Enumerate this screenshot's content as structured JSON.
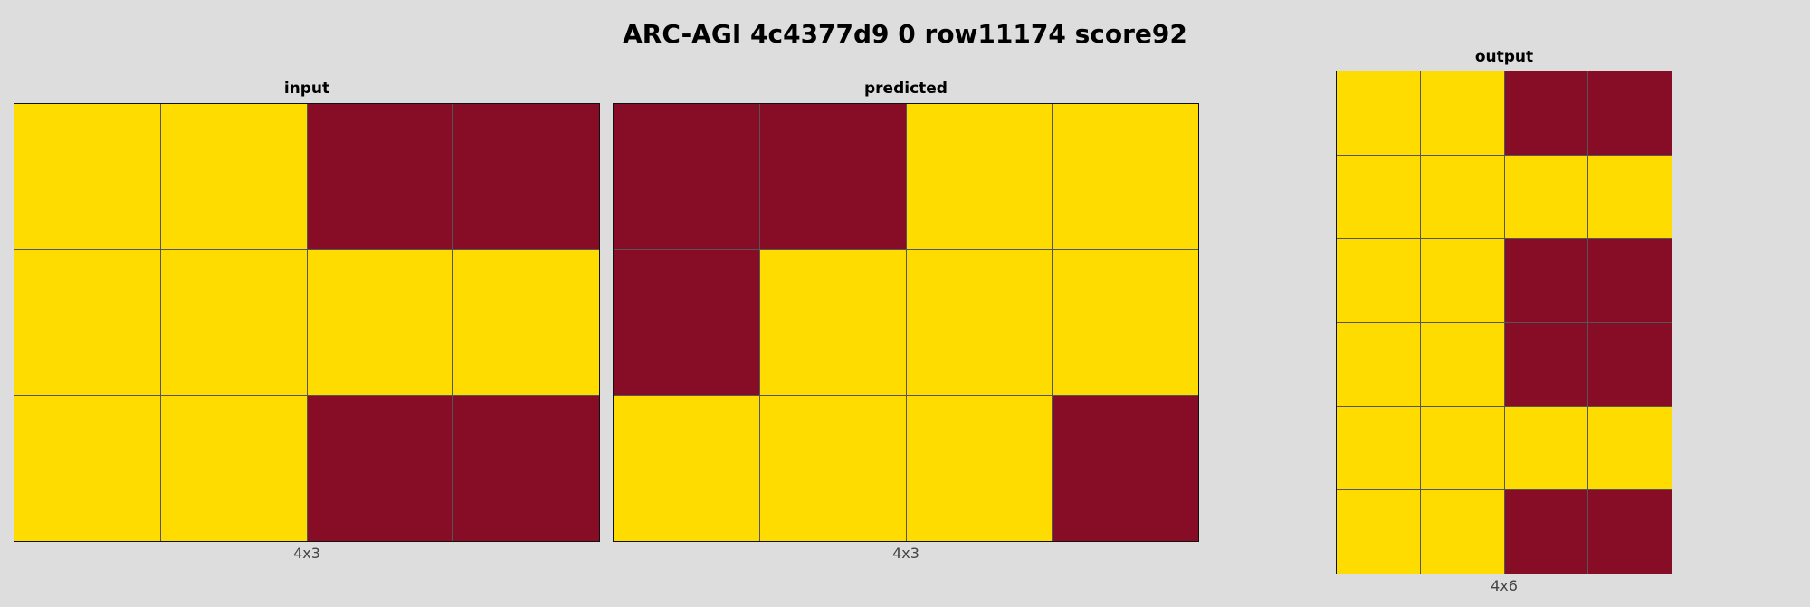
{
  "title": "ARC-AGI 4c4377d9 0 row11174 score92",
  "palette": {
    "4": "#FFDC00",
    "9": "#870C25"
  },
  "panels": [
    {
      "label": "input",
      "dims": "4x3",
      "grid": [
        [
          4,
          4,
          9,
          9
        ],
        [
          4,
          4,
          4,
          4
        ],
        [
          4,
          4,
          9,
          9
        ]
      ]
    },
    {
      "label": "predicted",
      "dims": "4x3",
      "grid": [
        [
          9,
          9,
          4,
          4
        ],
        [
          9,
          4,
          4,
          4
        ],
        [
          4,
          4,
          4,
          9
        ]
      ]
    },
    {
      "label": "output",
      "dims": "4x6",
      "grid": [
        [
          4,
          4,
          9,
          9
        ],
        [
          4,
          4,
          4,
          4
        ],
        [
          4,
          4,
          9,
          9
        ],
        [
          4,
          4,
          9,
          9
        ],
        [
          4,
          4,
          4,
          4
        ],
        [
          4,
          4,
          9,
          9
        ]
      ]
    }
  ]
}
